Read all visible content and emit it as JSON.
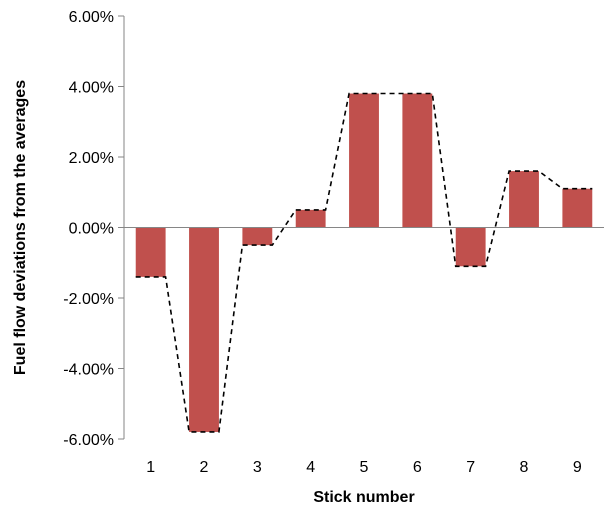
{
  "chart_data": {
    "type": "bar",
    "categories": [
      "1",
      "2",
      "3",
      "4",
      "5",
      "6",
      "7",
      "8",
      "9"
    ],
    "values": [
      -1.4,
      -5.8,
      -0.5,
      0.5,
      3.8,
      3.8,
      -1.1,
      1.6,
      1.1
    ],
    "series": [
      {
        "name": "",
        "values": [
          -1.4,
          -5.8,
          -0.5,
          0.5,
          3.8,
          3.8,
          -1.1,
          1.6,
          1.1
        ]
      }
    ],
    "trend_line": {
      "style": "dashed",
      "connects": "bar-ends"
    },
    "title": "",
    "xlabel": "Stick number",
    "ylabel": "Fuel flow deviations from the averages",
    "ylim": [
      -6,
      6
    ],
    "yticks": [
      -6,
      -4,
      -2,
      0,
      2,
      4,
      6
    ],
    "ytick_labels": [
      "-6.00%",
      "-4.00%",
      "-2.00%",
      "0.00%",
      "2.00%",
      "4.00%",
      "6.00%"
    ],
    "grid": false,
    "legend": "none",
    "colors": {
      "bar": "#c0504d",
      "trend_line": "#000000",
      "axis": "#868686"
    }
  }
}
